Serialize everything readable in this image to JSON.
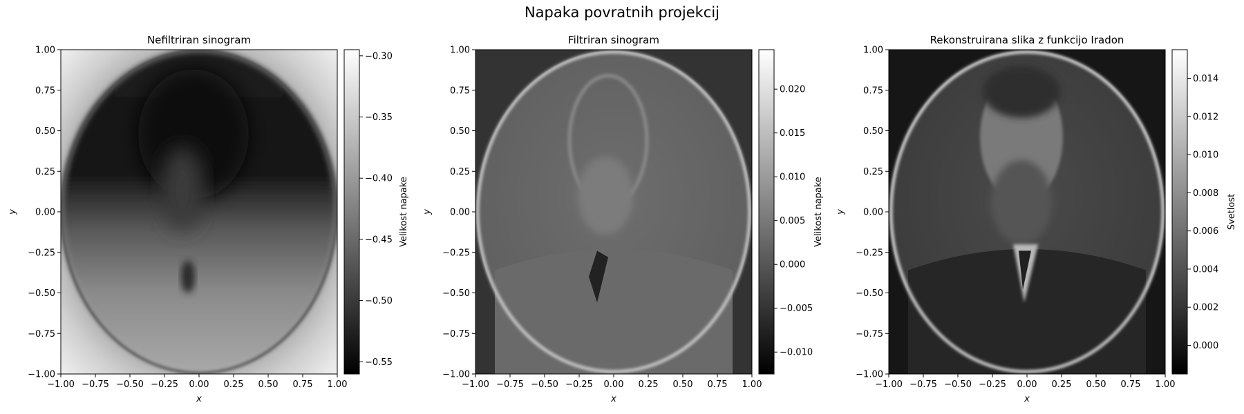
{
  "figure": {
    "title": "Napaka povratnih projekcij"
  },
  "chart_data": [
    {
      "type": "heatmap",
      "title": "Nefiltriran sinogram",
      "xlabel": "x",
      "ylabel": "y",
      "xlim": [
        -1.0,
        1.0
      ],
      "ylim": [
        -1.0,
        1.0
      ],
      "x_ticks": [
        "−1.00",
        "−0.75",
        "−0.50",
        "−0.25",
        "0.00",
        "0.25",
        "0.50",
        "0.75",
        "1.00"
      ],
      "y_ticks": [
        "−1.00",
        "−0.75",
        "−0.50",
        "−0.25",
        "0.00",
        "0.25",
        "0.50",
        "0.75",
        "1.00"
      ],
      "colormap": "gray",
      "image_content": "blurred unfiltered back-projection of a portrait inside an ellipse; dark upper region, lighter lower region, bright corners",
      "colorbar": {
        "label": "Velikost napake",
        "range": [
          -0.56,
          -0.295
        ],
        "ticks": [
          -0.3,
          -0.35,
          -0.4,
          -0.45,
          -0.5,
          -0.55
        ],
        "tick_labels": [
          "−0.30",
          "−0.35",
          "−0.40",
          "−0.45",
          "−0.50",
          "−0.55"
        ]
      }
    },
    {
      "type": "heatmap",
      "title": "Filtriran sinogram",
      "xlabel": "x",
      "ylabel": "y",
      "xlim": [
        -1.0,
        1.0
      ],
      "ylim": [
        -1.0,
        1.0
      ],
      "x_ticks": [
        "−1.00",
        "−0.75",
        "−0.50",
        "−0.25",
        "0.00",
        "0.25",
        "0.50",
        "0.75",
        "1.00"
      ],
      "y_ticks": [
        "−1.00",
        "−0.75",
        "−0.50",
        "−0.25",
        "0.00",
        "0.25",
        "0.50",
        "0.75",
        "1.00"
      ],
      "colormap": "gray",
      "image_content": "filtered back-projection error; faint edge-like portrait of a bearded man inside a bright elliptical ring on mid-gray",
      "colorbar": {
        "label": "Velikost napake",
        "range": [
          -0.0125,
          0.0245
        ],
        "ticks": [
          0.02,
          0.015,
          0.01,
          0.005,
          0.0,
          -0.005,
          -0.01
        ],
        "tick_labels": [
          "0.020",
          "0.015",
          "0.010",
          "0.005",
          "0.000",
          "−0.005",
          "−0.010"
        ]
      }
    },
    {
      "type": "heatmap",
      "title": "Rekonstruirana slika z funkcijo Iradon",
      "xlabel": "x",
      "ylabel": "y",
      "xlim": [
        -1.0,
        1.0
      ],
      "ylim": [
        -1.0,
        1.0
      ],
      "x_ticks": [
        "−1.00",
        "−0.75",
        "−0.50",
        "−0.25",
        "0.00",
        "0.25",
        "0.50",
        "0.75",
        "1.00"
      ],
      "y_ticks": [
        "−1.00",
        "−0.75",
        "−0.50",
        "−0.25",
        "0.00",
        "0.25",
        "0.50",
        "0.75",
        "1.00"
      ],
      "colormap": "gray",
      "image_content": "reconstructed portrait of a bearded man in a suit inside a bright elliptical ring on a dark background",
      "colorbar": {
        "label": "Svetlost",
        "range": [
          -0.0015,
          0.0155
        ],
        "ticks": [
          0.014,
          0.012,
          0.01,
          0.008,
          0.006,
          0.004,
          0.002,
          0.0
        ],
        "tick_labels": [
          "0.014",
          "0.012",
          "0.010",
          "0.008",
          "0.006",
          "0.004",
          "0.002",
          "0.000"
        ]
      }
    }
  ]
}
